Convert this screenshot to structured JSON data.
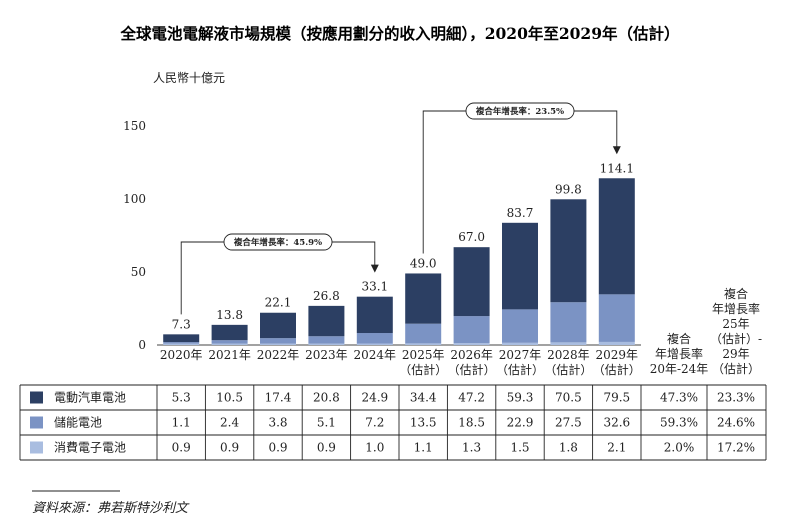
{
  "title": "全球電池電解液市場規模（按應用劃分的收入明細），2020年至2029年（估計）",
  "colors": {
    "ev": "#2c3f63",
    "storage": "#7b93c4",
    "consumer": "#a9bde0",
    "axis": "#444444"
  },
  "chart_data": {
    "type": "bar",
    "stacked": true,
    "title": "全球電池電解液市場規模（按應用劃分的收入明細），2020年至2029年（估計）",
    "ylabel": "人民幣十億元",
    "ylim": [
      0,
      150
    ],
    "yticks": [
      "0",
      "50",
      "100",
      "150"
    ],
    "categories": [
      [
        "2020年"
      ],
      [
        "2021年"
      ],
      [
        "2022年"
      ],
      [
        "2023年"
      ],
      [
        "2024年"
      ],
      [
        "2025年",
        "（估計）"
      ],
      [
        "2026年",
        "（估計）"
      ],
      [
        "2027年",
        "（估計）"
      ],
      [
        "2028年",
        "（估計）"
      ],
      [
        "2029年",
        "（估計）"
      ]
    ],
    "totals": [
      "7.3",
      "13.8",
      "22.1",
      "26.8",
      "33.1",
      "49.0",
      "67.0",
      "83.7",
      "99.8",
      "114.1"
    ],
    "series": [
      {
        "name": "電動汽車電池",
        "key": "ev",
        "values": [
          5.3,
          10.5,
          17.4,
          20.8,
          24.9,
          34.4,
          47.2,
          59.3,
          70.5,
          79.5
        ]
      },
      {
        "name": "儲能電池",
        "key": "storage",
        "values": [
          1.1,
          2.4,
          3.8,
          5.1,
          7.2,
          13.5,
          18.5,
          22.9,
          27.5,
          32.6
        ]
      },
      {
        "name": "消費電子電池",
        "key": "consumer",
        "values": [
          0.9,
          0.9,
          0.9,
          0.9,
          1.0,
          1.1,
          1.3,
          1.5,
          1.8,
          2.1
        ]
      }
    ],
    "cagr_headers": [
      [
        "複合",
        "年增長率",
        "20年-24年"
      ],
      [
        "複合",
        "年增長率",
        "25年",
        "（估計）-",
        "29年",
        "（估計）"
      ]
    ],
    "cagr_values": [
      [
        "47.3%",
        "23.3%"
      ],
      [
        "59.3%",
        "24.6%"
      ],
      [
        "2.0%",
        "17.2%"
      ]
    ],
    "annotations": [
      {
        "text": "複合年增長率：45.9%"
      },
      {
        "text": "複合年增長率：23.5%"
      }
    ]
  },
  "source": "資料來源：弗若斯特沙利文"
}
